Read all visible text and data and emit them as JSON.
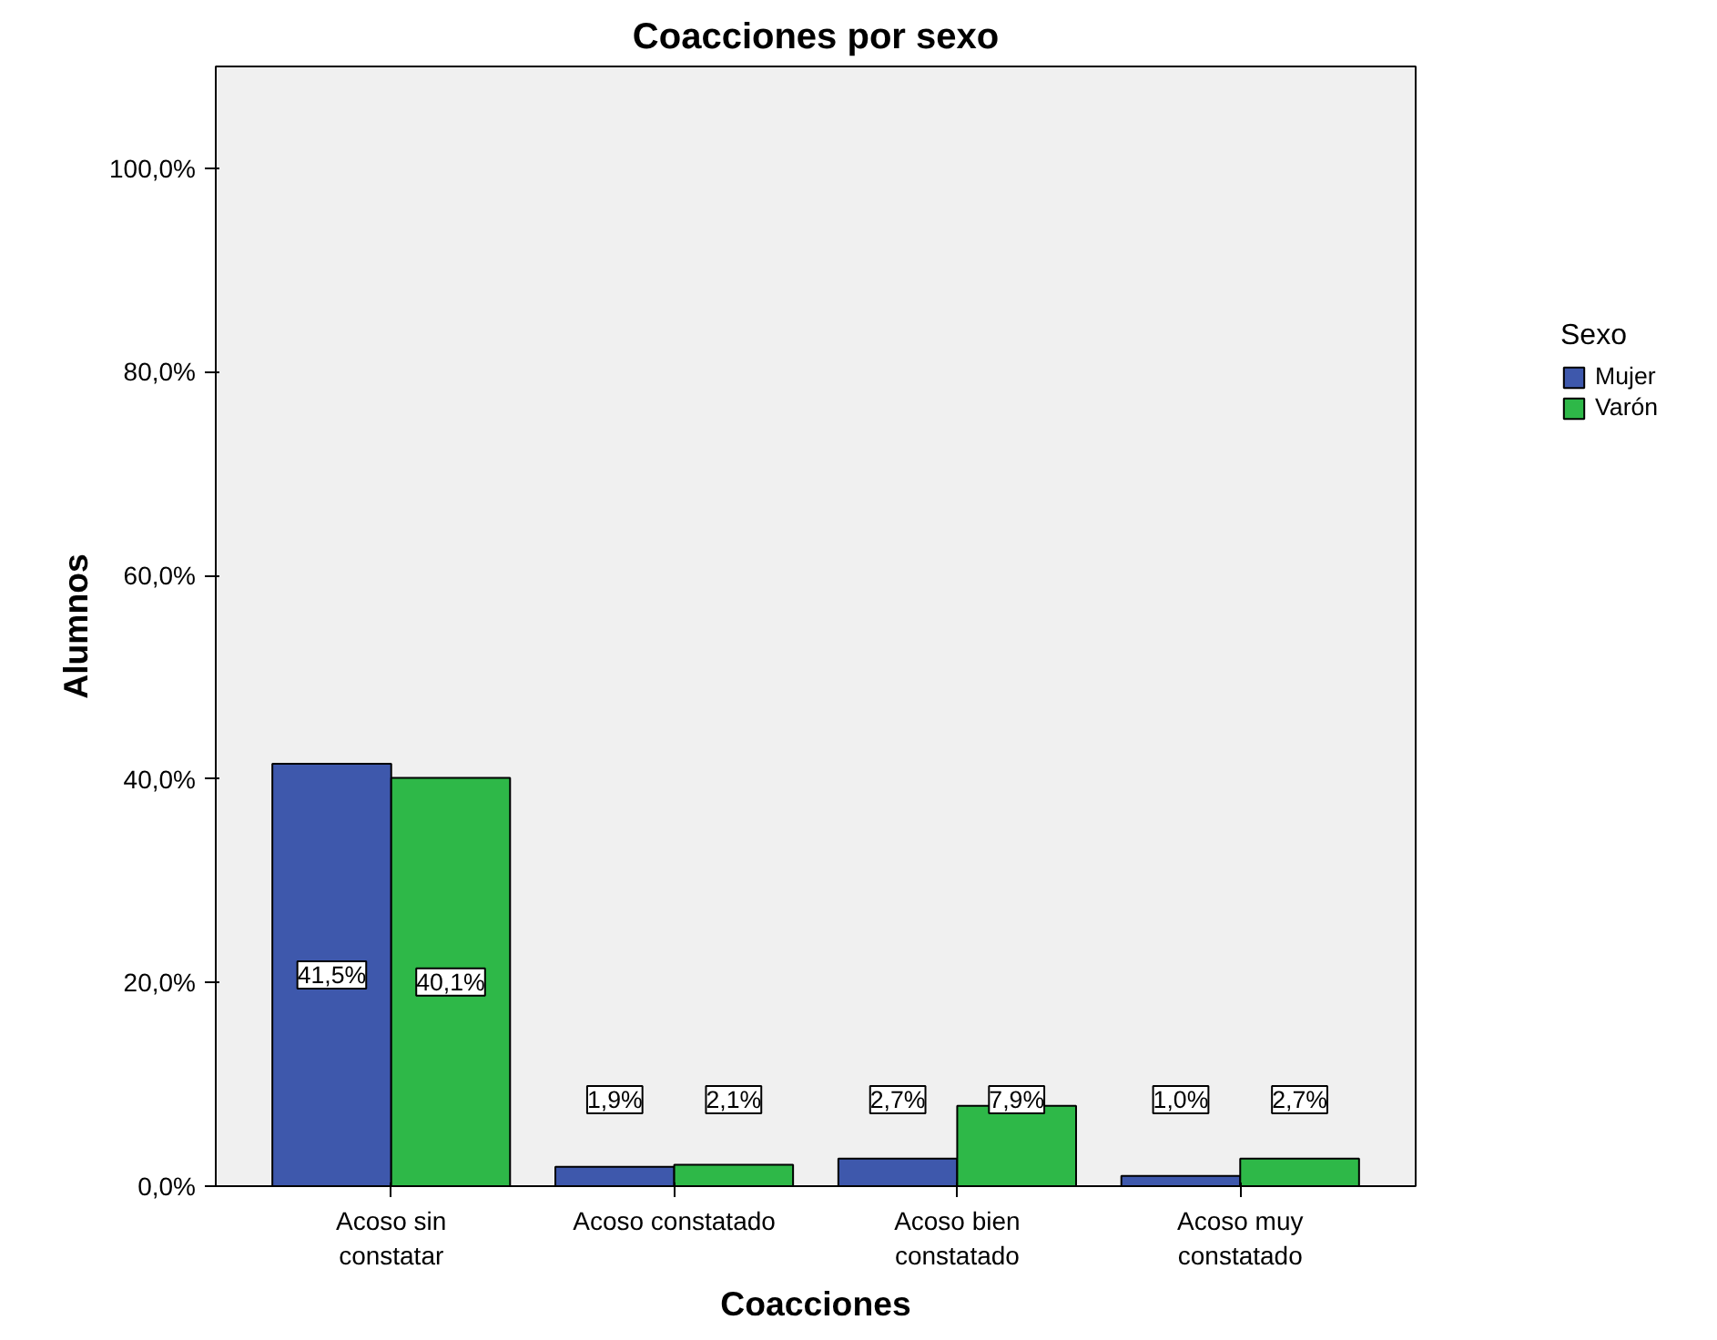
{
  "chart_data": {
    "type": "bar",
    "title": "Coacciones por sexo",
    "xlabel": "Coacciones",
    "ylabel": "Alumnos",
    "legend_title": "Sexo",
    "categories": [
      "Acoso sin\nconstatar",
      "Acoso constatado",
      "Acoso bien\nconstatado",
      "Acoso muy\nconstatado"
    ],
    "series": [
      {
        "name": "Mujer",
        "color": "#3e58ac",
        "values": [
          41.5,
          1.9,
          2.7,
          1.0
        ],
        "value_labels": [
          "41,5%",
          "1,9%",
          "2,7%",
          "1,0%"
        ]
      },
      {
        "name": "Varón",
        "color": "#2eb848",
        "values": [
          40.1,
          2.1,
          7.9,
          2.7
        ],
        "value_labels": [
          "40,1%",
          "2,1%",
          "7,9%",
          "2,7%"
        ]
      }
    ],
    "ylim": [
      0,
      110
    ],
    "yticks": [
      {
        "value": 0,
        "label": "0,0%"
      },
      {
        "value": 20,
        "label": "20,0%"
      },
      {
        "value": 40,
        "label": "40,0%"
      },
      {
        "value": 60,
        "label": "60,0%"
      },
      {
        "value": 80,
        "label": "80,0%"
      },
      {
        "value": 100,
        "label": "100,0%"
      }
    ],
    "grid": false,
    "legend": "right"
  }
}
